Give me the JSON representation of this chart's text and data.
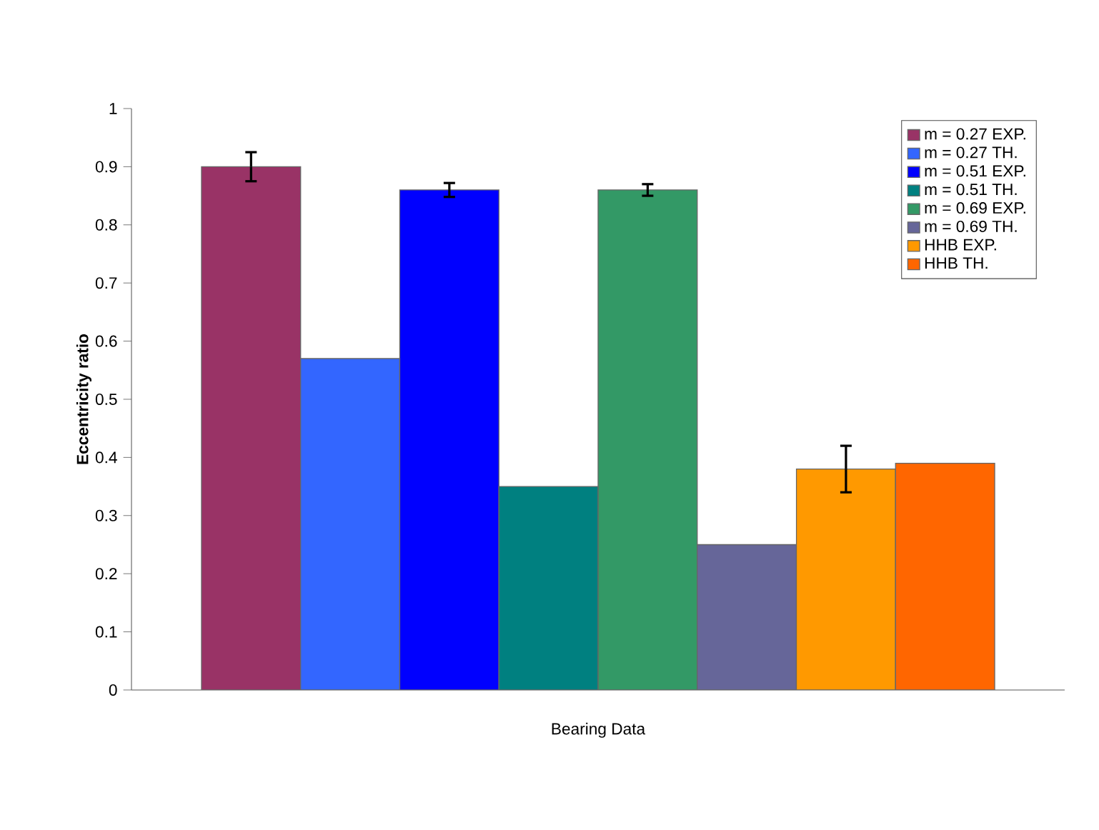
{
  "chart_data": {
    "type": "bar",
    "xlabel": "Bearing Data",
    "ylabel": "Eccentricity ratio",
    "categories": [
      null
    ],
    "series": [
      {
        "name": "m = 0.27 EXP.",
        "color": "#993366",
        "values": [
          0.9
        ],
        "errors": [
          0.025
        ]
      },
      {
        "name": "m = 0.27 TH.",
        "color": "#3366ff",
        "values": [
          0.57
        ]
      },
      {
        "name": "m = 0.51 EXP.",
        "color": "#0000ff",
        "values": [
          0.86
        ],
        "errors": [
          0.012
        ]
      },
      {
        "name": "m = 0.51 TH.",
        "color": "#008080",
        "values": [
          0.35
        ]
      },
      {
        "name": "m = 0.69 EXP.",
        "color": "#339966",
        "values": [
          0.86
        ],
        "errors": [
          0.01
        ]
      },
      {
        "name": "m = 0.69 TH.",
        "color": "#666699",
        "values": [
          0.25
        ]
      },
      {
        "name": "HHB EXP.",
        "color": "#ff9900",
        "values": [
          0.38
        ],
        "errors": [
          0.04
        ]
      },
      {
        "name": "HHB TH.",
        "color": "#ff6600",
        "values": [
          0.39
        ]
      }
    ],
    "ylim": [
      0,
      1
    ],
    "yticks": [
      0,
      0.1,
      0.2,
      0.3,
      0.4,
      0.5,
      0.6,
      0.7,
      0.8,
      0.9,
      1
    ],
    "grid": false,
    "legend": "top right"
  }
}
